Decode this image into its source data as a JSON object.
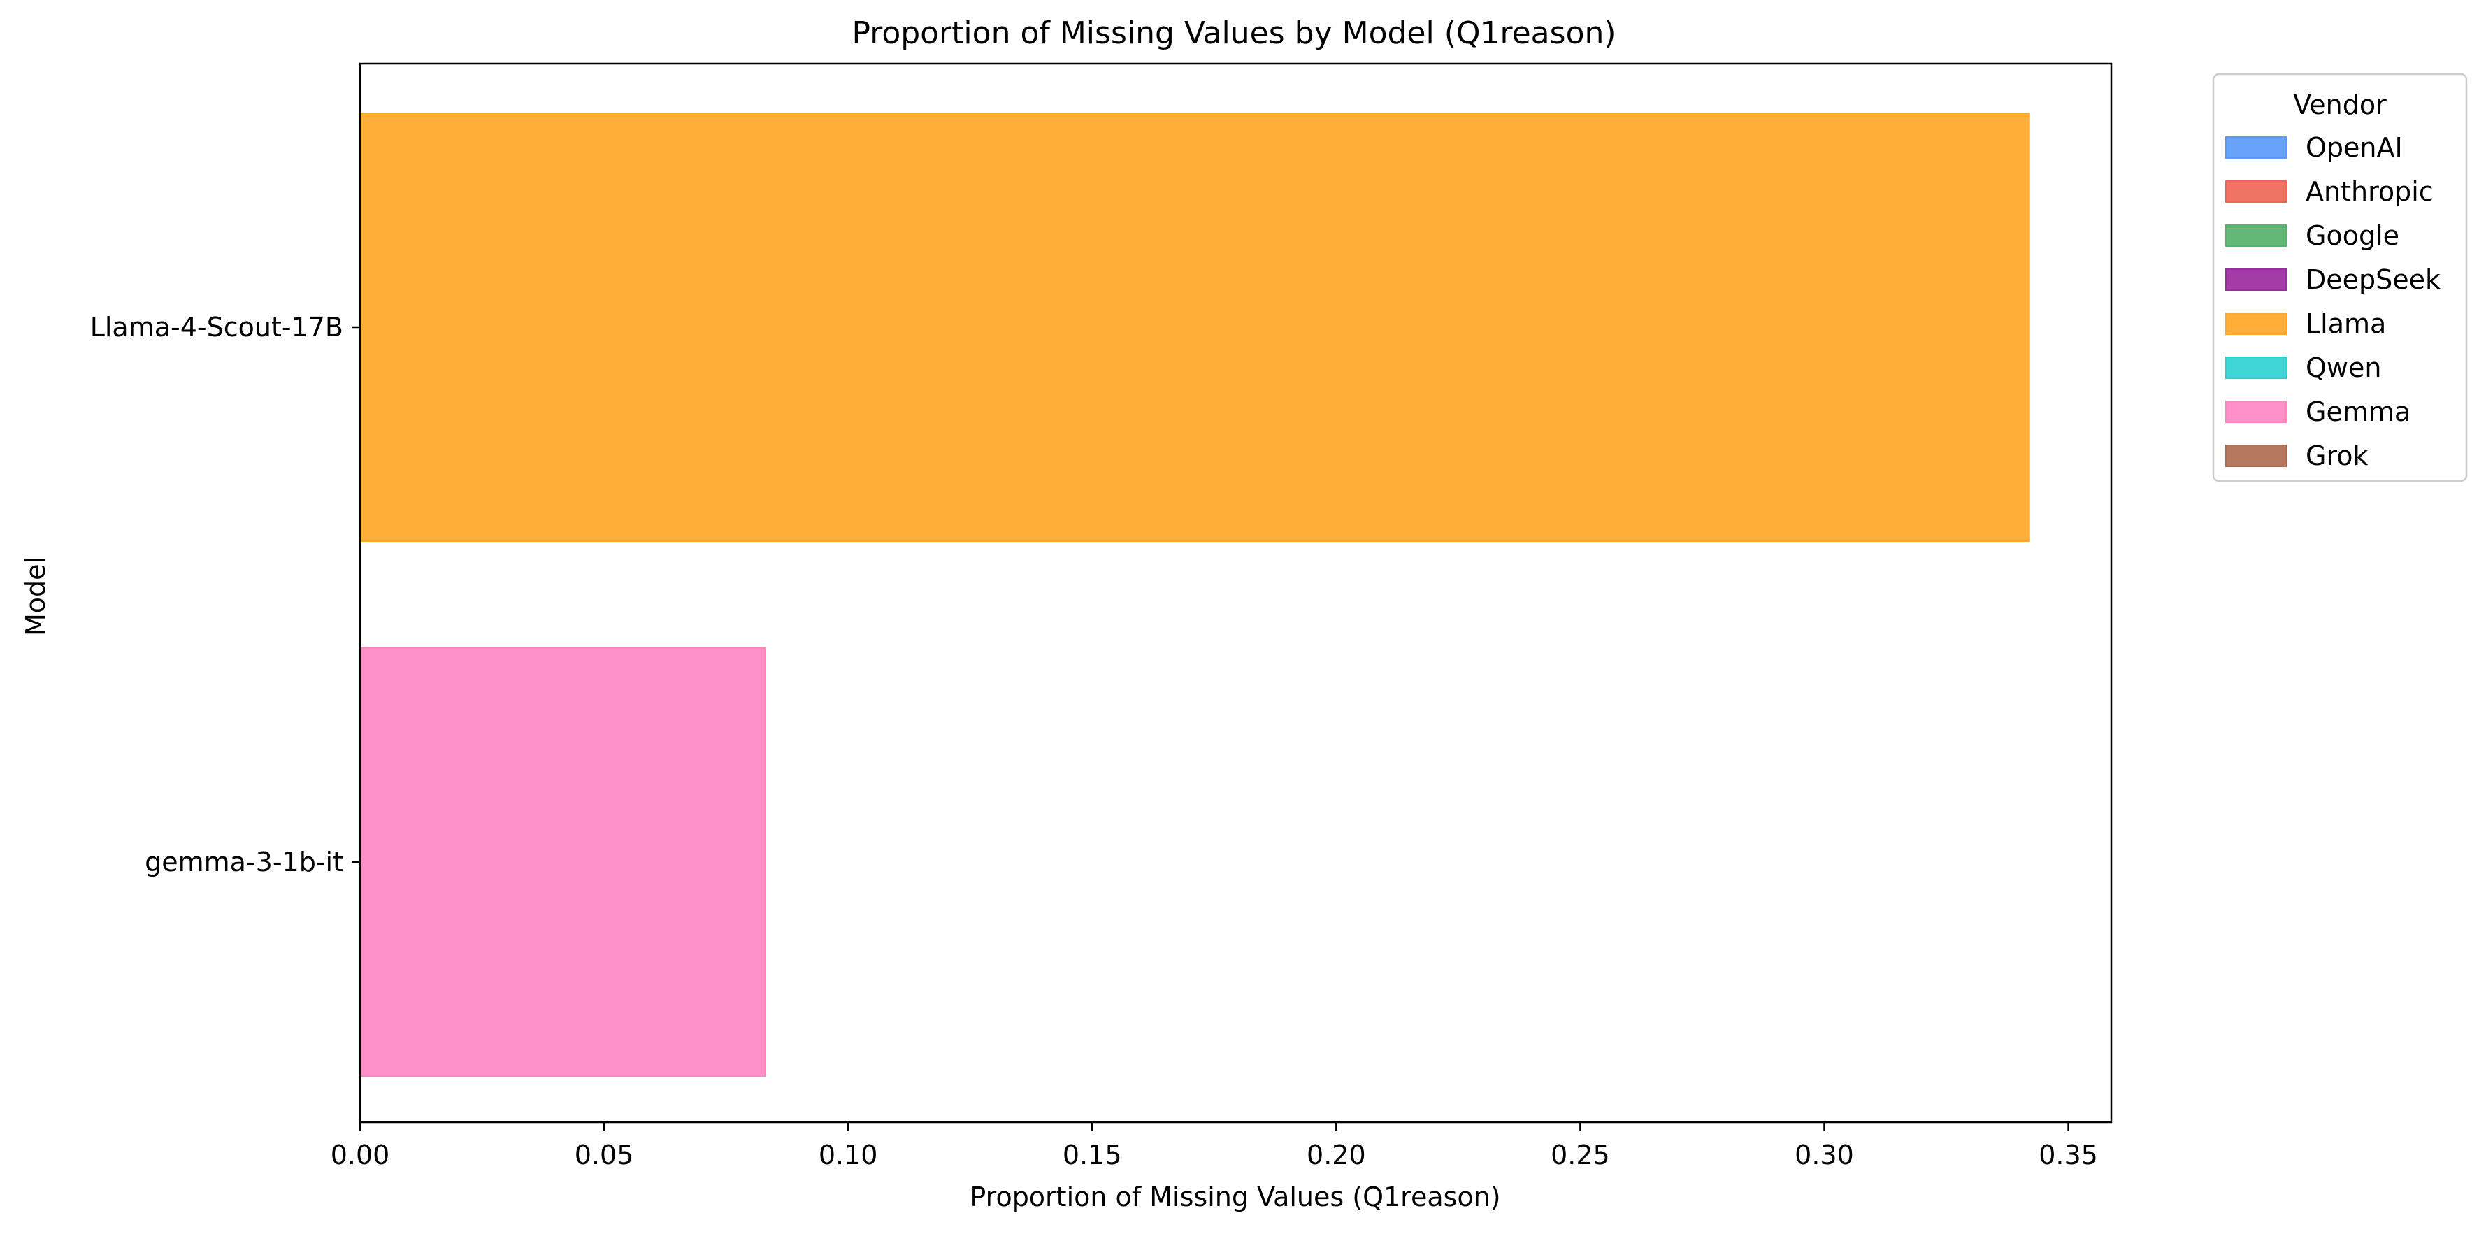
{
  "chart_data": {
    "type": "bar",
    "orientation": "horizontal",
    "title": "Proportion of Missing Values by Model (Q1reason)",
    "xlabel": "Proportion of Missing Values (Q1reason)",
    "ylabel": "Model",
    "xlim": [
      0,
      0.3588
    ],
    "xticks": [
      "0.00",
      "0.05",
      "0.10",
      "0.15",
      "0.20",
      "0.25",
      "0.30",
      "0.35"
    ],
    "grid": false,
    "categories": [
      "Llama-4-Scout-17B",
      "gemma-3-1b-it"
    ],
    "series": [
      {
        "category": "Llama-4-Scout-17B",
        "vendor": "Llama",
        "value": 0.342,
        "color": "#ffa726"
      },
      {
        "category": "gemma-3-1b-it",
        "vendor": "Gemma",
        "value": 0.083,
        "color": "#ff86c1"
      }
    ],
    "legend": {
      "title": "Vendor",
      "placement": "outside upper right",
      "entries": [
        {
          "label": "OpenAI",
          "color": "#5b9bf8"
        },
        {
          "label": "Anthropic",
          "color": "#ef6656"
        },
        {
          "label": "Google",
          "color": "#56b26c"
        },
        {
          "label": "DeepSeek",
          "color": "#9b2b9e"
        },
        {
          "label": "Llama",
          "color": "#ffa726"
        },
        {
          "label": "Qwen",
          "color": "#2fd0d2"
        },
        {
          "label": "Gemma",
          "color": "#ff86c1"
        },
        {
          "label": "Grok",
          "color": "#ae6d50"
        }
      ]
    }
  }
}
